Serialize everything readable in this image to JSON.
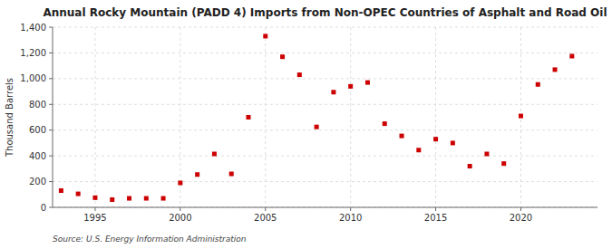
{
  "chart_data": {
    "type": "scatter",
    "title": "Annual Rocky Mountain (PADD 4) Imports from Non-OPEC Countries of Asphalt and Road Oil",
    "ylabel": "Thousand Barrels",
    "source": "Source: U.S. Energy Information Administration",
    "x": [
      1993,
      1994,
      1995,
      1996,
      1997,
      1998,
      1999,
      2000,
      2001,
      2002,
      2003,
      2004,
      2005,
      2006,
      2007,
      2008,
      2009,
      2010,
      2011,
      2012,
      2013,
      2014,
      2015,
      2016,
      2017,
      2018,
      2019,
      2020,
      2021,
      2022,
      2023
    ],
    "values": [
      130,
      105,
      75,
      60,
      70,
      70,
      70,
      190,
      255,
      415,
      260,
      700,
      1330,
      1170,
      1030,
      625,
      895,
      940,
      970,
      650,
      555,
      445,
      530,
      500,
      320,
      415,
      340,
      710,
      955,
      1070,
      1175
    ],
    "color": "#cc0000",
    "marker": "square",
    "grid": true,
    "xlim": [
      1992.5,
      2024.5
    ],
    "xticks": [
      1995,
      2000,
      2005,
      2010,
      2015,
      2020
    ],
    "ylim": [
      0,
      1400
    ],
    "yticks": [
      0,
      200,
      400,
      600,
      800,
      {
        "value": 1000,
        "label": "1,000"
      },
      {
        "value": 1200,
        "label": "1,200"
      },
      {
        "value": 1400,
        "label": "1,400"
      }
    ]
  }
}
